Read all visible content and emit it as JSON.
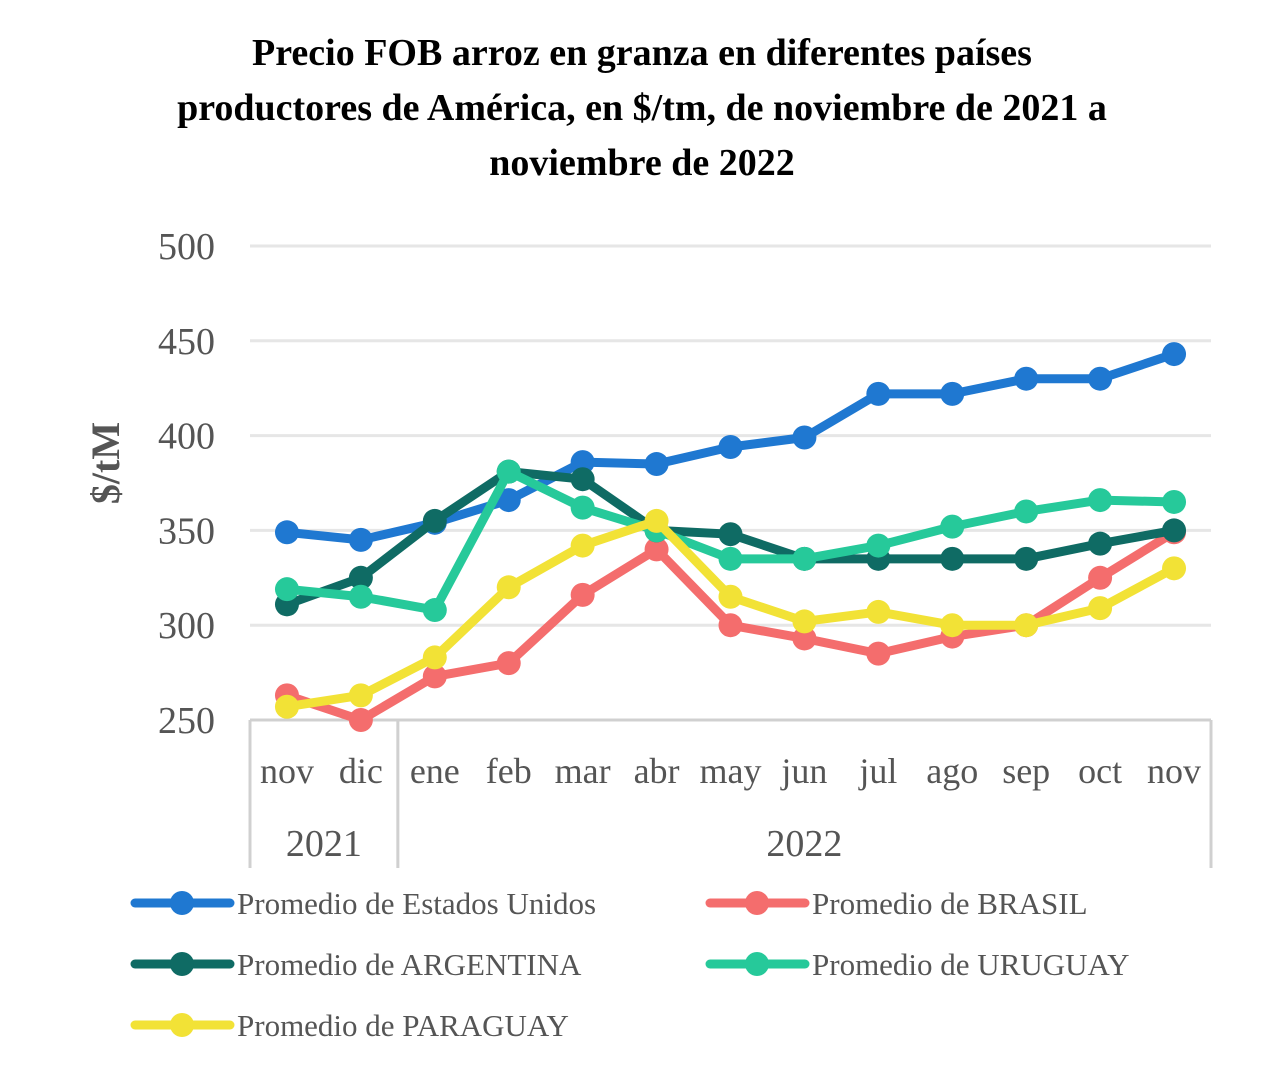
{
  "chart_data": {
    "type": "line",
    "title_lines": [
      "Precio FOB arroz en granza en diferentes países",
      "productores de América, en $/tm, de noviembre de 2021 a",
      "noviembre de 2022"
    ],
    "ylabel": "$/tM",
    "ylim": [
      250,
      500
    ],
    "yticks": [
      250,
      300,
      350,
      400,
      450,
      500
    ],
    "grid": true,
    "legend_position": "bottom",
    "categories": [
      "nov",
      "dic",
      "ene",
      "feb",
      "mar",
      "abr",
      "may",
      "jun",
      "jul",
      "ago",
      "sep",
      "oct",
      "nov"
    ],
    "year_groups": [
      {
        "label": "2021",
        "count": 2
      },
      {
        "label": "2022",
        "count": 11
      }
    ],
    "series": [
      {
        "name": "Promedio de Estados Unidos",
        "color": "#1f78d1",
        "values": [
          349,
          345,
          354,
          366,
          386,
          385,
          394,
          399,
          422,
          422,
          430,
          430,
          443
        ]
      },
      {
        "name": "Promedio de BRASIL",
        "color": "#f46d6d",
        "values": [
          263,
          250,
          273,
          280,
          316,
          340,
          300,
          293,
          285,
          294,
          300,
          325,
          349
        ]
      },
      {
        "name": "Promedio de ARGENTINA",
        "color": "#0f6b64",
        "values": [
          311,
          325,
          355,
          381,
          377,
          350,
          348,
          335,
          335,
          335,
          335,
          343,
          350
        ]
      },
      {
        "name": "Promedio de URUGUAY",
        "color": "#26c99a",
        "values": [
          319,
          315,
          308,
          381,
          362,
          350,
          335,
          335,
          342,
          352,
          360,
          366,
          365
        ]
      },
      {
        "name": "Promedio de PARAGUAY",
        "color": "#f2e236",
        "values": [
          257,
          263,
          283,
          320,
          342,
          355,
          315,
          302,
          307,
          300,
          300,
          309,
          330
        ]
      }
    ]
  }
}
